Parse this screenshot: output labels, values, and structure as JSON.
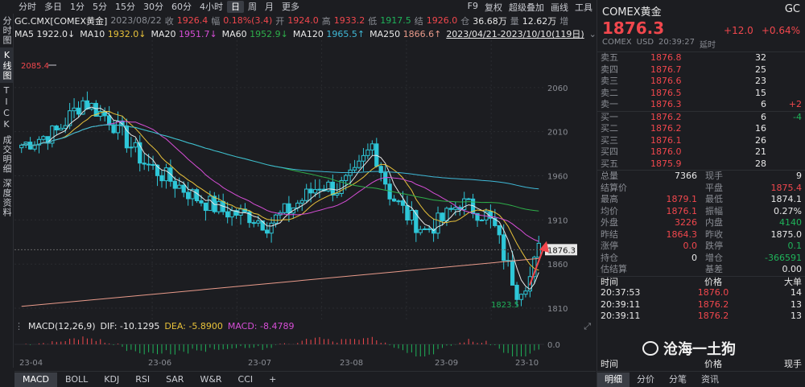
{
  "periods": [
    "分时",
    "多日",
    "1分",
    "5分",
    "15分",
    "30分",
    "60分",
    "4小时",
    "日",
    "周",
    "月",
    "更多"
  ],
  "active_period": "日",
  "top_right": [
    "F9",
    "复权",
    "超级叠加",
    "画线",
    "工具"
  ],
  "vtabs": [
    "分时图",
    "K线图",
    "TICK",
    "成交明细",
    "深度资料"
  ],
  "active_vtab": "K线图",
  "quote": {
    "symbol": "GC.CMX[COMEX黄金]",
    "date": "2023/08/22",
    "close_label": "收",
    "close": "1926.4",
    "chg_label": "幅",
    "chg": "0.18%(3.4)",
    "open_label": "开",
    "open": "1924.0",
    "high_label": "高",
    "high": "1933.2",
    "low_label": "低",
    "low": "1917.5",
    "settle_label": "结",
    "settle": "1926.0",
    "hold_label": "仓",
    "hold": "36.68万",
    "vol_label": "量",
    "vol": "12.62万",
    "more": "增"
  },
  "ma": [
    {
      "label": "MA5",
      "value": "1922.0↓",
      "color": "#e8e8e8"
    },
    {
      "label": "MA10",
      "value": "1932.0↓",
      "color": "#e8c23a"
    },
    {
      "label": "MA20",
      "value": "1951.7↓",
      "color": "#d64ed6"
    },
    {
      "label": "MA60",
      "value": "1952.9↓",
      "color": "#2eae4a"
    },
    {
      "label": "MA120",
      "value": "1965.5↑",
      "color": "#3fb8d6"
    },
    {
      "label": "MA250",
      "value": "1866.6↑",
      "color": "#e89a8a"
    }
  ],
  "range": "2023/04/21-2023/10/10(119日)",
  "chart_data": {
    "type": "candlestick",
    "ylim": [
      1800,
      2110
    ],
    "yticks": [
      1810,
      1860,
      1910,
      1960,
      2010,
      2060
    ],
    "high_label": "2085.4",
    "low_label": "1823.5",
    "last": "1876.3",
    "xlabels": [
      "23-04",
      "23-06",
      "23-07",
      "23-08",
      "23-09",
      "23-10"
    ]
  },
  "macd": {
    "label": "MACD(12,26,9)",
    "dif": "DIF: -10.1295",
    "dea": "DEA: -5.8900",
    "macd": "MACD: -8.4789",
    "zero": "0.0"
  },
  "bottom_tabs": [
    "MACD",
    "BOLL",
    "KDJ",
    "RSI",
    "SAR",
    "W&R",
    "CCI",
    "+"
  ],
  "panel": {
    "name": "COMEX黄金",
    "code": "GC",
    "price": "1876.3",
    "chg": "+12.0",
    "pct": "+0.64%",
    "sub": [
      "COMEX",
      "USD",
      "20:39:27",
      "延时"
    ],
    "asks": [
      {
        "l": "卖五",
        "p": "1876.8",
        "v": "32",
        "d": ""
      },
      {
        "l": "卖四",
        "p": "1876.7",
        "v": "25",
        "d": ""
      },
      {
        "l": "卖三",
        "p": "1876.6",
        "v": "23",
        "d": ""
      },
      {
        "l": "卖二",
        "p": "1876.5",
        "v": "15",
        "d": ""
      },
      {
        "l": "卖一",
        "p": "1876.3",
        "v": "6",
        "d": "+2"
      }
    ],
    "bids": [
      {
        "l": "买一",
        "p": "1876.2",
        "v": "6",
        "d": "-4"
      },
      {
        "l": "买二",
        "p": "1876.2",
        "v": "16",
        "d": ""
      },
      {
        "l": "买三",
        "p": "1876.1",
        "v": "26",
        "d": ""
      },
      {
        "l": "买四",
        "p": "1876.0",
        "v": "21",
        "d": ""
      },
      {
        "l": "买五",
        "p": "1875.9",
        "v": "28",
        "d": ""
      }
    ],
    "stats": [
      [
        "总量",
        "7366",
        "现手",
        "9"
      ],
      [
        "结算价",
        "",
        "平盘",
        "1875.4"
      ],
      [
        "最高",
        "1879.1",
        "最低",
        "1874.1"
      ],
      [
        "均价",
        "1876.1",
        "振幅",
        "0.27%"
      ],
      [
        "外盘",
        "3226",
        "内盘",
        "4140"
      ],
      [
        "昨结",
        "1864.3",
        "昨收",
        "1875.0"
      ],
      [
        "涨停",
        "0.0",
        "跌停",
        "0.1"
      ],
      [
        "持仓",
        "0",
        "增仓",
        "-366591"
      ],
      [
        "估结算",
        "",
        "基差",
        "0.00"
      ]
    ],
    "trades_header": [
      "时间",
      "价格",
      "大单"
    ],
    "trades": [
      [
        "20:37:53",
        "1876.0",
        "14"
      ],
      [
        "20:39:11",
        "1876.2",
        "13"
      ],
      [
        "20:39:11",
        "1876.2",
        "13"
      ]
    ],
    "trades_header2": [
      "时间",
      "价格",
      "现手"
    ],
    "panel_tabs": [
      "明细",
      "分价",
      "分笔",
      "资讯"
    ],
    "watermark": "沧海一土狗"
  }
}
